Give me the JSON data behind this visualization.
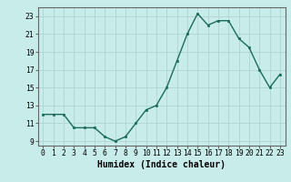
{
  "x": [
    0,
    1,
    2,
    3,
    4,
    5,
    6,
    7,
    8,
    9,
    10,
    11,
    12,
    13,
    14,
    15,
    16,
    17,
    18,
    19,
    20,
    21,
    22,
    23
  ],
  "y": [
    12.0,
    12.0,
    12.0,
    10.5,
    10.5,
    10.5,
    9.5,
    9.0,
    9.5,
    11.0,
    12.5,
    13.0,
    15.0,
    18.0,
    21.0,
    23.3,
    22.0,
    22.5,
    22.5,
    20.5,
    19.5,
    17.0,
    15.0,
    16.5
  ],
  "xlabel": "Humidex (Indice chaleur)",
  "xlim": [
    -0.5,
    23.5
  ],
  "ylim": [
    8.5,
    24.0
  ],
  "yticks": [
    9,
    11,
    13,
    15,
    17,
    19,
    21,
    23
  ],
  "xticks": [
    0,
    1,
    2,
    3,
    4,
    5,
    6,
    7,
    8,
    9,
    10,
    11,
    12,
    13,
    14,
    15,
    16,
    17,
    18,
    19,
    20,
    21,
    22,
    23
  ],
  "line_color": "#1a6b5a",
  "bg_color": "#c8ecea",
  "grid_color": "#aed4d0",
  "axis_color": "#666666",
  "tick_label_fontsize": 5.8,
  "xlabel_fontsize": 7.0
}
